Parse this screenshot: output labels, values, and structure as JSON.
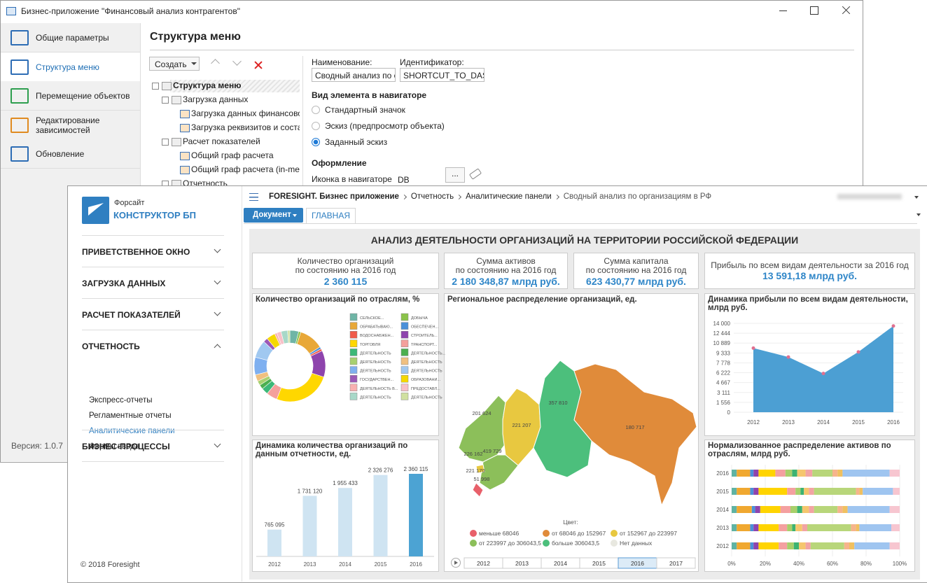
{
  "back_window": {
    "title": "Бизнес-приложение \"Финансовый анализ контрагентов\"",
    "nav": [
      "Общие параметры",
      "Структура меню",
      "Перемещение объектов",
      "Редактирование зависимостей",
      "Обновление"
    ],
    "nav_selected": 1,
    "version": "Версия: 1.0.7",
    "heading": "Структура меню",
    "create_button": "Создать",
    "tree": [
      "Структура меню",
      "Загрузка данных",
      "Загрузка данных финансово",
      "Загрузка реквизитов и соста",
      "Расчет показателей",
      "Общий граф расчета",
      "Общий граф расчета (in-mem",
      "Отчетность"
    ],
    "form": {
      "name_label": "Наименование:",
      "name_value": "Сводный анализ по ор",
      "id_label": "Идентификатор:",
      "id_value": "SHORTCUT_TO_DASH",
      "view_heading": "Вид элемента в навигаторе",
      "view_options": [
        "Стандартный значок",
        "Эскиз (предпросмотр объекта)",
        "Заданный эскиз"
      ],
      "view_selected": 2,
      "design_heading": "Оформление",
      "icon_label": "Иконка в навигаторе",
      "icon_value": "DB",
      "browse_button": "..."
    }
  },
  "front_window": {
    "brand_top": "Форсайт",
    "brand_bottom": "КОНСТРУКТОР БП",
    "menu": [
      "ПРИВЕТСТВЕННОЕ ОКНО",
      "ЗАГРУЗКА ДАННЫХ",
      "РАСЧЕТ ПОКАЗАТЕЛЕЙ",
      "ОТЧЕТНОСТЬ",
      "БИЗНЕС-ПРОЦЕССЫ"
    ],
    "menu_expanded": 3,
    "submenu": [
      "Экспресс-отчеты",
      "Регламентные отчеты",
      "Аналитические панели",
      "Формы ввода"
    ],
    "submenu_active": 2,
    "copyright": "© 2018 Foresight",
    "breadcrumb": [
      "FORESIGHT. Бизнес приложение",
      "Отчетность",
      "Аналитические панели",
      "Сводный анализ по организациям в РФ"
    ],
    "document_button": "Документ",
    "tab": "ГЛАВНАЯ",
    "dashboard": {
      "title": "АНАЛИЗ ДЕЯТЕЛЬНОСТИ ОРГАНИЗАЦИЙ НА ТЕРРИТОРИИ РОССИЙСКОЙ ФЕДЕРАЦИИ",
      "kpis": [
        {
          "lines": [
            "Количество организаций",
            "по состоянию на 2016 год"
          ],
          "value": "2 360 115"
        },
        {
          "lines": [
            "Сумма активов",
            "по состоянию на 2016 год"
          ],
          "value": "2 180 348,87 млрд руб."
        },
        {
          "lines": [
            "Сумма капитала",
            "по состоянию на 2016 год"
          ],
          "value": "623 430,77 млрд руб."
        },
        {
          "lines": [
            "Прибыль по всем видам деятельности за 2016 год"
          ],
          "value": "13 591,18 млрд руб."
        }
      ],
      "donut": {
        "type": "pie",
        "title": "Количество организаций по отраслям, %",
        "categories": [
          "СЕЛЬСКОЕ...",
          "ДОБЫЧА",
          "ОБРАБАТЫВАЮ...",
          "ОБЕСПЕЧЕН...",
          "ВОДОСНАБЖЕН...",
          "СТРОИТЕЛЬ...",
          "ТОРГОВЛЯ",
          "ТРАНСПОРТ...",
          "ДЕЯТЕЛЬНОСТЬ",
          "ДЕЯТЕЛЬНОСТЬ...",
          "ДЕЯТЕЛЬНОСТЬ",
          "ДЕЯТЕЛЬНОСТЬ",
          "ДЕЯТЕЛЬНОСТЬ",
          "ДЕЯТЕЛЬНОСТЬ",
          "ГОСУДАРСТВЕН...",
          "ОБРАЗОВАНИ...",
          "ДЕЯТЕЛЬНОСТЬ В...",
          "ПРЕДОСТАВЛ...",
          "ДЕЯТЕЛЬНОСТЬ",
          "ДЕЯТЕЛЬНОСТЬ"
        ],
        "values": [
          4,
          1,
          11,
          1,
          1,
          12,
          26,
          5,
          3,
          2,
          2,
          3,
          8,
          8,
          2,
          4,
          1,
          2,
          3,
          1
        ],
        "colors": [
          "#6fb5a6",
          "#8bc34a",
          "#e8a838",
          "#4a90d9",
          "#f05a4a",
          "#8e44ad",
          "#ffd700",
          "#f4a09c",
          "#3cb878",
          "#4caf50",
          "#a8d070",
          "#f0c080",
          "#7fb0f0",
          "#a0c8f0",
          "#9b59b6",
          "#f5d800",
          "#f8b0b0",
          "#f8c0c8",
          "#a8d8c8",
          "#d0e0a0"
        ]
      },
      "map": {
        "title": "Региональное распределение организаций, ед.",
        "labels": [
          "201 624",
          "221 207",
          "357 810",
          "180 717",
          "419 729",
          "226 162",
          "221 170",
          "51 998"
        ],
        "legend_title": "Цвет:",
        "legend": [
          {
            "label": "меньше 68046",
            "color": "#e8606a"
          },
          {
            "label": "от 68046 до 152967",
            "color": "#e08b3a"
          },
          {
            "label": "от 152967 до 223997",
            "color": "#e8c840"
          },
          {
            "label": "от 223997 до 306043,5",
            "color": "#8cbf5a"
          },
          {
            "label": "больше 306043,5",
            "color": "#4cbf7c"
          },
          {
            "label": "Нет данных",
            "color": "#e8e8e0"
          }
        ],
        "years": [
          "2012",
          "2013",
          "2014",
          "2015",
          "2016",
          "2017"
        ],
        "selected_year": 4
      },
      "area": {
        "type": "area",
        "title": "Динамика прибыли по всем видам деятельности, млрд руб.",
        "categories": [
          "2012",
          "2013",
          "2014",
          "2015",
          "2016"
        ],
        "values": [
          10100,
          8700,
          6100,
          9500,
          13591.18
        ],
        "color": "#4c9fd3",
        "point_color": "#e07090",
        "ylim": [
          0,
          14000
        ],
        "yticks": [
          0,
          {
            "value": 1556,
            "label": "1 556"
          },
          {
            "value": 3111,
            "label": "3 111"
          },
          {
            "value": 4667,
            "label": "4 667"
          },
          {
            "value": 6222,
            "label": "6 222"
          },
          {
            "value": 7778,
            "label": "7 778"
          },
          {
            "value": 9333,
            "label": "9 333"
          },
          {
            "value": 10889,
            "label": "10 889"
          },
          {
            "value": 12444,
            "label": "12 444"
          },
          {
            "value": 14000,
            "label": "14 000"
          }
        ]
      },
      "bars": {
        "type": "bar",
        "title": "Динамика количества организаций по данным отчетности, ед.",
        "categories": [
          "2012",
          "2013",
          "2014",
          "2015",
          "2016"
        ],
        "values": [
          765095,
          1731120,
          1955433,
          2326276,
          2360115
        ],
        "value_labels": [
          "765 095",
          "1 731 120",
          "1 955 433",
          "2 326 276",
          "2 360 115"
        ],
        "colors": [
          "#cfe4f2",
          "#cfe4f2",
          "#cfe4f2",
          "#cfe4f2",
          "#4ca3d3"
        ],
        "ylim": [
          0,
          2500000
        ]
      },
      "stacked": {
        "type": "bar",
        "orientation": "horizontal",
        "stacked": true,
        "title": "Нормализованное распределение активов по отраслям, млрд руб.",
        "categories": [
          "2016",
          "2015",
          "2014",
          "2013",
          "2012"
        ],
        "xlim": [
          0,
          100
        ],
        "xticks": [
          {
            "value": 0,
            "label": "0%"
          },
          {
            "value": 20,
            "label": "20%"
          },
          {
            "value": 40,
            "label": "40%"
          },
          {
            "value": 60,
            "label": "60%"
          },
          {
            "value": 80,
            "label": "80%"
          },
          {
            "value": 100,
            "label": "100%"
          }
        ],
        "series": [
          {
            "color": "#5fb3a3",
            "values": [
              3,
              3,
              3,
              3,
              3
            ]
          },
          {
            "color": "#f0a830",
            "values": [
              8,
              8,
              9,
              8,
              8
            ]
          },
          {
            "color": "#4a90d9",
            "values": [
              2,
              2,
              2,
              2,
              2
            ]
          },
          {
            "color": "#8e44ad",
            "values": [
              3,
              3,
              3,
              3,
              3
            ]
          },
          {
            "color": "#ffd400",
            "values": [
              10,
              17,
              12,
              12,
              12
            ]
          },
          {
            "color": "#f4a0a0",
            "values": [
              6,
              5,
              6,
              5,
              5
            ]
          },
          {
            "color": "#a8cf6a",
            "values": [
              4,
              3,
              4,
              3,
              4
            ]
          },
          {
            "color": "#3cb371",
            "values": [
              3,
              2,
              3,
              2,
              3
            ]
          },
          {
            "color": "#f5c66e",
            "values": [
              5,
              3,
              4,
              4,
              4
            ]
          },
          {
            "color": "#f2a4a4",
            "values": [
              4,
              3,
              3,
              3,
              3
            ]
          },
          {
            "color": "#b8d67a",
            "values": [
              12,
              25,
              14,
              26,
              20
            ]
          },
          {
            "color": "#f6b48c",
            "values": [
              3,
              2,
              3,
              3,
              3
            ]
          },
          {
            "color": "#f0c060",
            "values": [
              3,
              2,
              3,
              2,
              3
            ]
          },
          {
            "color": "#9fc5f0",
            "values": [
              28,
              18,
              25,
              19,
              21
            ]
          },
          {
            "color": "#f7c6d0",
            "values": [
              6,
              4,
              6,
              5,
              6
            ]
          }
        ]
      }
    }
  }
}
